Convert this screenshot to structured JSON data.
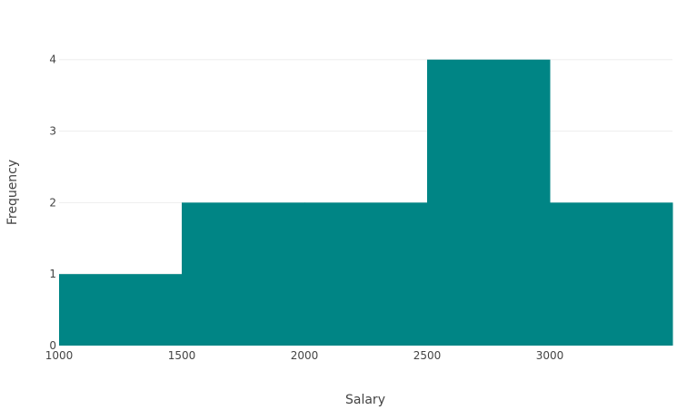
{
  "chart_data": {
    "type": "bar",
    "chart_kind": "histogram",
    "bins": [
      {
        "start": 1000,
        "end": 1500,
        "count": 1
      },
      {
        "start": 1500,
        "end": 2000,
        "count": 2
      },
      {
        "start": 2000,
        "end": 2500,
        "count": 2
      },
      {
        "start": 2500,
        "end": 3000,
        "count": 4
      },
      {
        "start": 3000,
        "end": 3500,
        "count": 2
      }
    ],
    "xlabel": "Salary",
    "ylabel": "Frequency",
    "xlim": [
      1000,
      3500
    ],
    "ylim": [
      0,
      4.25
    ],
    "x_ticks": [
      "1000",
      "1500",
      "2000",
      "2500",
      "3000"
    ],
    "y_ticks": [
      "0",
      "1",
      "2",
      "3",
      "4"
    ],
    "bar_color": "#008585",
    "grid": true,
    "grid_color": "#eeeeee"
  }
}
